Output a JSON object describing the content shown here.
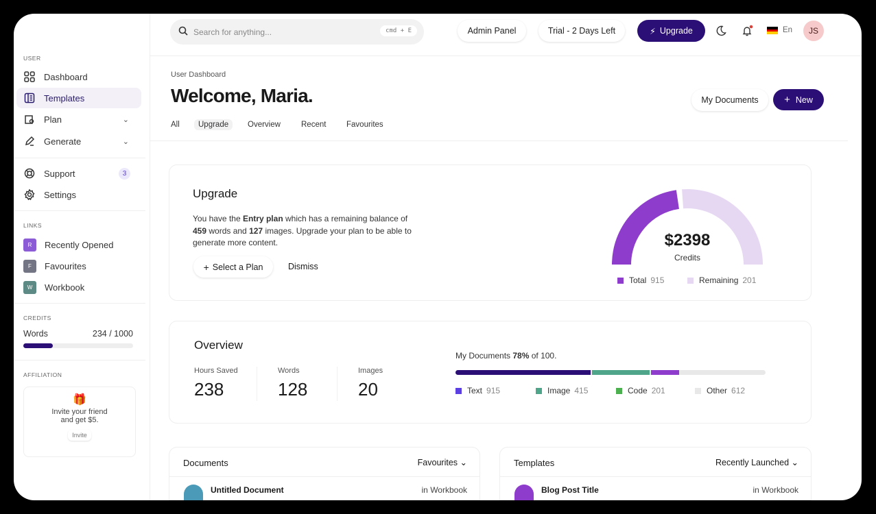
{
  "sidebar": {
    "user_label": "USER",
    "items": [
      {
        "label": "Dashboard",
        "icon": "grid-icon"
      },
      {
        "label": "Templates",
        "icon": "document-icon",
        "active": true
      },
      {
        "label": "Plan",
        "icon": "wallet-icon"
      },
      {
        "label": "Generate",
        "icon": "pen-icon"
      },
      {
        "label": "Support",
        "icon": "lifebuoy-icon",
        "badge": "3"
      },
      {
        "label": "Settings",
        "icon": "gear-icon"
      }
    ],
    "links_label": "LINKS",
    "links": [
      {
        "letter": "R",
        "label": "Recently Opened",
        "color": "#8b5cd6"
      },
      {
        "letter": "F",
        "label": "Favourites",
        "color": "#737584"
      },
      {
        "letter": "W",
        "label": "Workbook",
        "color": "#5e8a86"
      }
    ],
    "credits_label": "CREDITS",
    "credits": {
      "label": "Words",
      "value": "234 / 1000",
      "used": 234,
      "total": 1000
    },
    "affiliation_label": "AFFILIATION",
    "affiliation": {
      "text1": "Invite your friend",
      "text2": "and get $5.",
      "button": "Invite"
    }
  },
  "topbar": {
    "search_placeholder": "Search for anything...",
    "shortcut": "cmd + E",
    "admin": "Admin Panel",
    "trial": "Trial - 2 Days Left",
    "upgrade": "Upgrade",
    "lang": "En",
    "avatar": "JS"
  },
  "header": {
    "breadcrumb": "User Dashboard",
    "title": "Welcome, Maria.",
    "my_documents": "My Documents",
    "new": "New",
    "tabs": [
      "All",
      "Upgrade",
      "Overview",
      "Recent",
      "Favourites"
    ],
    "active_tab": "Upgrade"
  },
  "upgrade": {
    "title": "Upgrade",
    "t1": "You have the ",
    "plan": "Entry plan",
    "t2": " which has a remaining balance of",
    "words": "459",
    "t3": " words and ",
    "images": "127",
    "t4": " images. Upgrade your plan to be able to",
    "t5": "generate more content.",
    "select": "Select a Plan",
    "dismiss": "Dismiss",
    "gauge": {
      "value": "$2398",
      "label": "Credits",
      "total_label": "Total",
      "total": "915",
      "remaining_label": "Remaining",
      "remaining": "201",
      "colors": {
        "total": "#8e3ccb",
        "remaining": "#e6d8f3"
      }
    }
  },
  "overview": {
    "title": "Overview",
    "stats": [
      {
        "label": "Hours Saved",
        "value": "238"
      },
      {
        "label": "Words",
        "value": "128"
      },
      {
        "label": "Images",
        "value": "20"
      }
    ],
    "docs_t1": "My Documents ",
    "docs_pct": "78%",
    "docs_t2": " of 100.",
    "segments": [
      {
        "label": "Text",
        "value": "915",
        "color": "#2b0e76",
        "legend_color": "#5b3fe0"
      },
      {
        "label": "Image",
        "value": "415",
        "color": "#4fa58a",
        "legend_color": "#4fa58a"
      },
      {
        "label": "Code",
        "value": "201",
        "color": "#8e3ccb",
        "legend_color": "#4caf50"
      },
      {
        "label": "Other",
        "value": "612",
        "color": "#e8e8e8",
        "legend_color": "#e8e8e8"
      }
    ]
  },
  "documents": {
    "title": "Documents",
    "filter": "Favourites",
    "row": {
      "name": "Untitled Document",
      "location": "in Workbook"
    }
  },
  "templates": {
    "title": "Templates",
    "filter": "Recently Launched",
    "row": {
      "name": "Blog Post Title",
      "location": "in Workbook"
    }
  }
}
